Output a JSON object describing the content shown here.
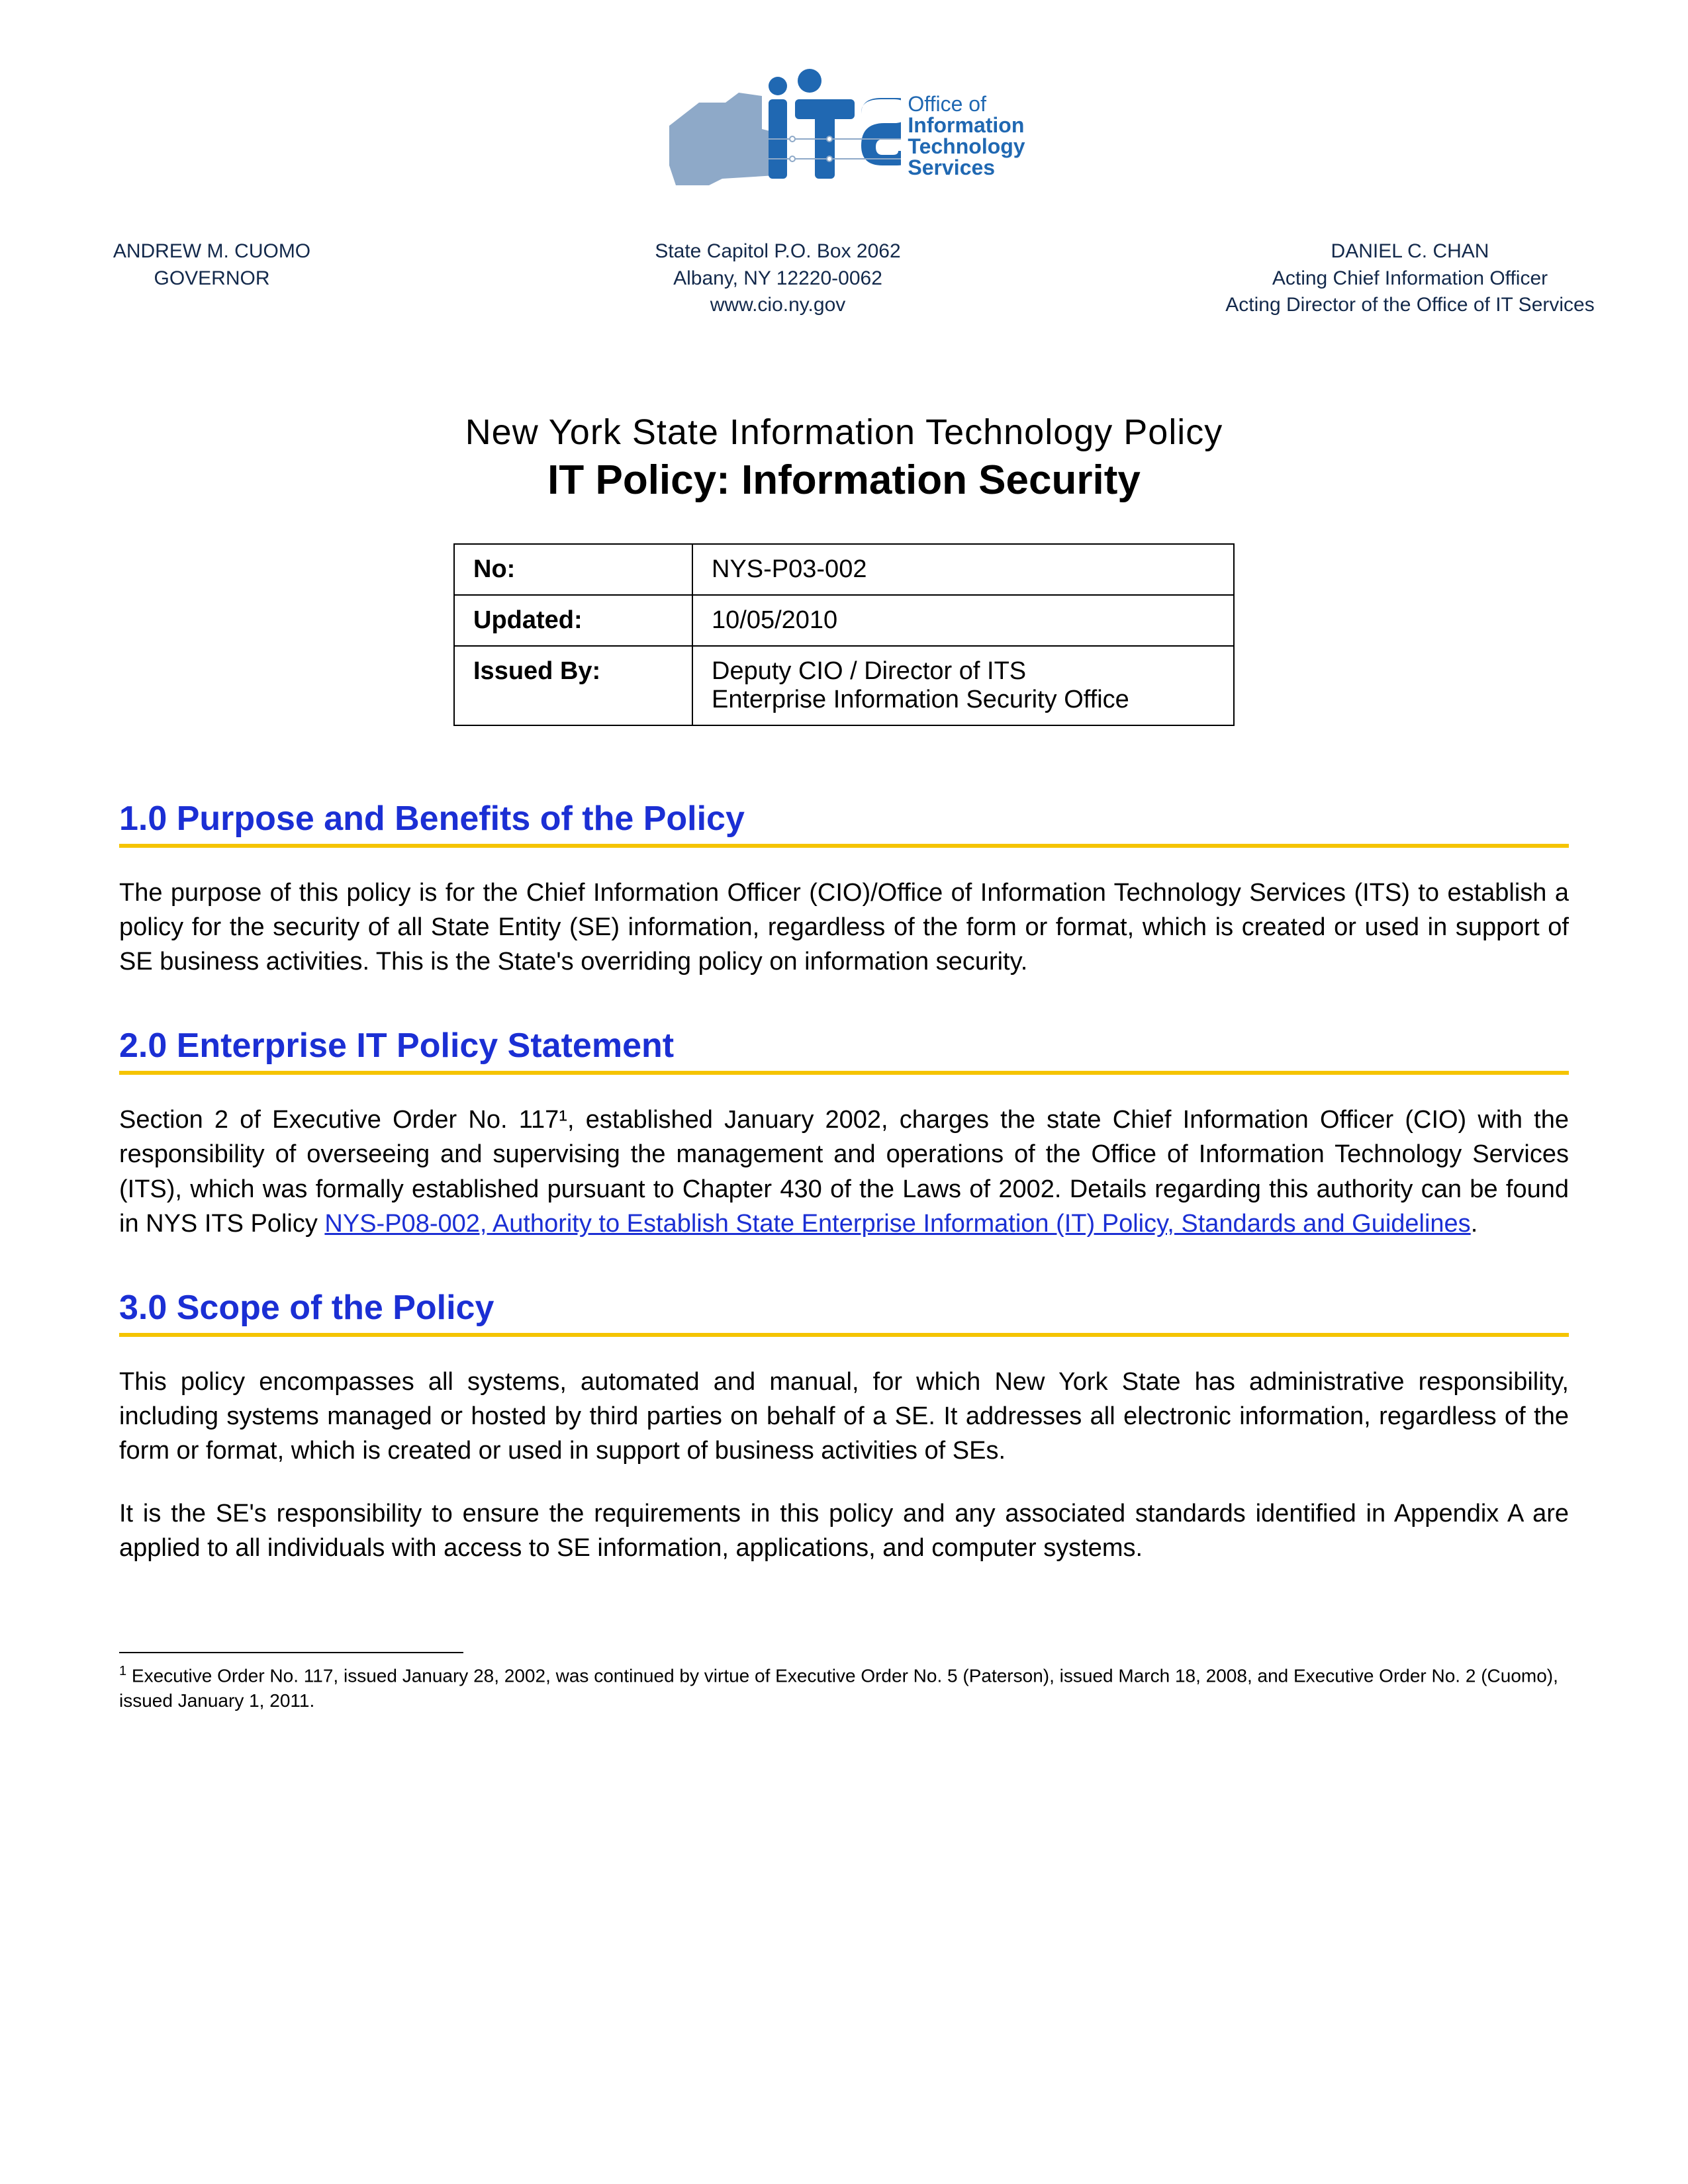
{
  "colors": {
    "heading_blue": "#1b2fd4",
    "rule_gold": "#f5c400",
    "logo_blue": "#2068b2",
    "logo_steel": "#8ea9c8",
    "banner_navy": "#13294b",
    "text": "#000000",
    "background": "#ffffff"
  },
  "fonts": {
    "body_family": "Century Gothic, Futura, Trebuchet MS, Arial, sans-serif",
    "doc_title_size_pt": 24,
    "section_heading_size_pt": 20,
    "body_size_pt": 15,
    "banner_size_pt": 12,
    "footnote_size_pt": 11
  },
  "logo": {
    "acronym": "ITS",
    "line1": "Office of",
    "line2": "Information",
    "line3": "Technology",
    "line4": "Services",
    "state_shape": "new-york-silhouette"
  },
  "banner": {
    "left": {
      "name": "ANDREW M. CUOMO",
      "title": "GOVERNOR"
    },
    "mid": {
      "line1": "State Capitol P.O. Box 2062",
      "line2": "Albany, NY 12220-0062",
      "line3": "www.cio.ny.gov"
    },
    "right": {
      "name": "DANIEL C. CHAN",
      "title1": "Acting Chief Information Officer",
      "title2": "Acting Director of the Office of IT Services"
    }
  },
  "doc": {
    "category": "New York State Information Technology Policy",
    "title": "IT Policy: Information Security"
  },
  "meta": {
    "rows": [
      {
        "label": "No:",
        "value": "NYS-P03-002"
      },
      {
        "label": "Updated:",
        "value": "10/05/2010"
      },
      {
        "label": "Issued By:",
        "value": "Deputy CIO / Director of ITS\nEnterprise Information Security Office"
      }
    ]
  },
  "sections": [
    {
      "heading": "1.0 Purpose and Benefits of the Policy",
      "paragraphs": [
        "The purpose of this policy is for the Chief Information Officer (CIO)/Office of Information Technology Services (ITS) to establish a policy for the security of all State Entity (SE) information, regardless of the form or format, which is created or used in support of SE business activities. This is the State's overriding policy on information security."
      ]
    },
    {
      "heading": "2.0 Enterprise IT Policy Statement",
      "paragraphs": [
        "Section 2 of Executive Order No. 117¹, established January 2002, charges the state Chief Information Officer (CIO) with the responsibility of overseeing and supervising the management and operations of the Office of Information Technology Services (ITS), which was formally established pursuant to Chapter 430 of the Laws of 2002. Details regarding this authority can be found in NYS ITS Policy <a class=\"inline-link\" data-name=\"ref-link-nys-p08-002\" data-interactable=\"true\" href=\"#\">NYS-P08-002, Authority to Establish State Enterprise Information (IT) Policy, Standards and Guidelines</a>."
      ]
    },
    {
      "heading": "3.0 Scope of the Policy",
      "paragraphs": [
        "This policy encompasses all systems, automated and manual, for which New York State has administrative responsibility, including systems managed or hosted by third parties on behalf of a SE. It addresses all electronic information, regardless of the form or format, which is created or used in support of business activities of SEs.",
        "It is the SE's responsibility to ensure the requirements in this policy and any associated standards identified in Appendix A are applied to all individuals with access to SE information, applications, and computer systems."
      ]
    }
  ],
  "footnote": {
    "marker": "1",
    "text": "Executive Order No. 117, issued January 28, 2002, was continued by virtue of Executive Order No. 5 (Paterson), issued March 18, 2008, and Executive Order No. 2 (Cuomo), issued January 1, 2011."
  }
}
